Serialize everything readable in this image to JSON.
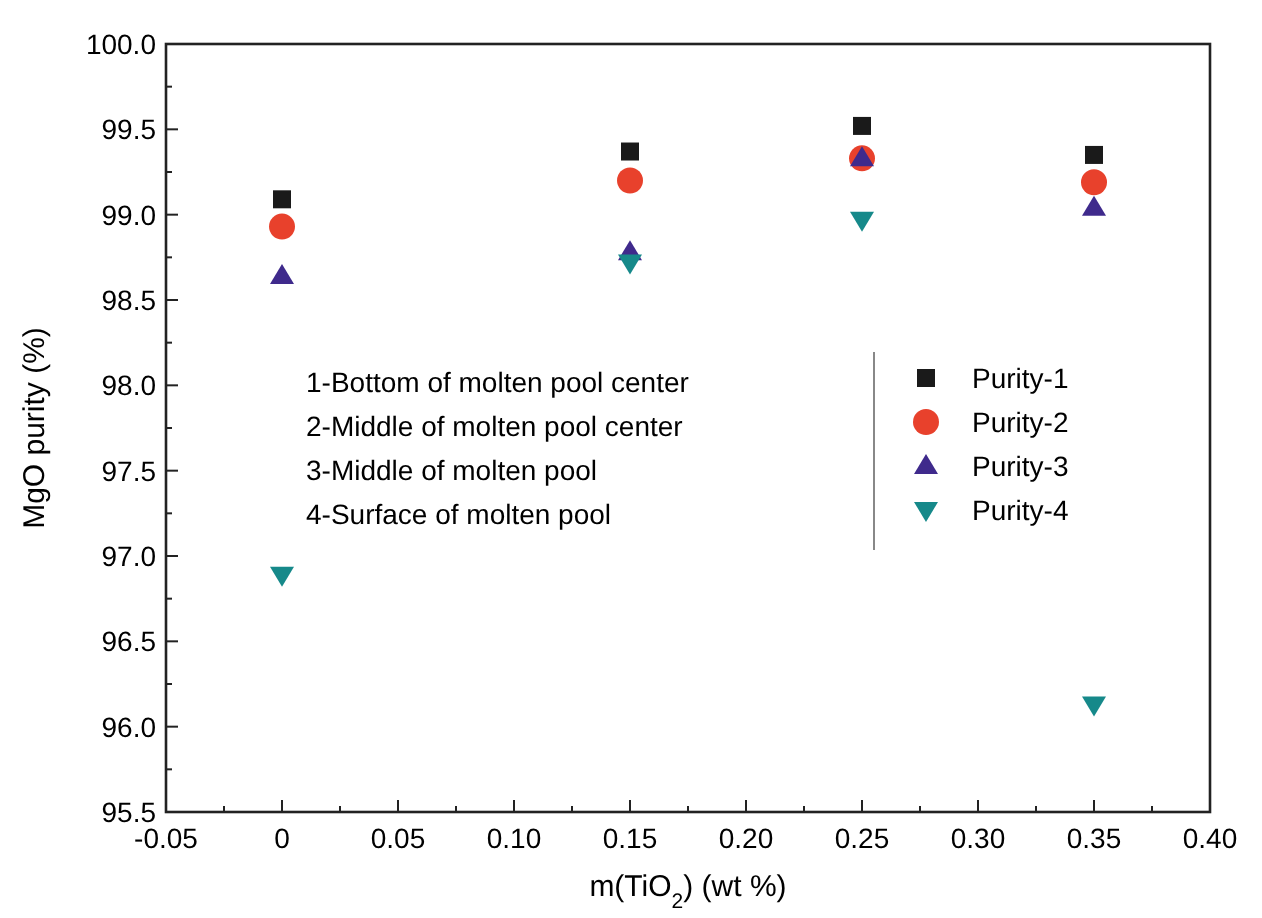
{
  "chart_data": {
    "type": "scatter",
    "xlabel": "m(TiO$_{2}$) (wt %)",
    "ylabel": "MgO purity (%)",
    "x": [
      0,
      0.15,
      0.25,
      0.35
    ],
    "series": [
      {
        "name": "Purity-1",
        "color": "#1a1a1a",
        "marker": "square",
        "values": [
          99.09,
          99.37,
          99.52,
          99.35
        ]
      },
      {
        "name": "Purity-2",
        "color": "#e8412c",
        "marker": "circle",
        "values": [
          98.93,
          99.2,
          99.33,
          99.19
        ]
      },
      {
        "name": "Purity-3",
        "color": "#3f2a8c",
        "marker": "triangle",
        "values": [
          98.64,
          98.78,
          99.33,
          99.04
        ]
      },
      {
        "name": "Purity-4",
        "color": "#16898a",
        "marker": "triangle-down",
        "values": [
          96.89,
          98.72,
          98.97,
          96.13
        ]
      }
    ],
    "xlim": [
      -0.05,
      0.4
    ],
    "xticks": [
      -0.05,
      {
        "value": 0,
        "label": "0"
      },
      0.05,
      {
        "value": 0.1,
        "label": "0.10"
      },
      0.15,
      {
        "value": 0.2,
        "label": "0.20"
      },
      0.25,
      {
        "value": 0.3,
        "label": "0.30"
      },
      0.35,
      {
        "value": 0.4,
        "label": "0.40"
      }
    ],
    "ylim": [
      95.5,
      100
    ],
    "yticks": [
      95.5,
      {
        "value": 96,
        "label": "96.0"
      },
      96.5,
      {
        "value": 97,
        "label": "97.0"
      },
      97.5,
      {
        "value": 98,
        "label": "98.0"
      },
      98.5,
      {
        "value": 99,
        "label": "99.0"
      },
      99.5,
      {
        "value": 100,
        "label": "100.0"
      }
    ],
    "annotations": [
      "1-Bottom of molten pool center",
      "2-Middle of molten pool center",
      "3-Middle of molten pool",
      "4-Surface of molten pool"
    ],
    "legend": "right",
    "grid": false
  }
}
